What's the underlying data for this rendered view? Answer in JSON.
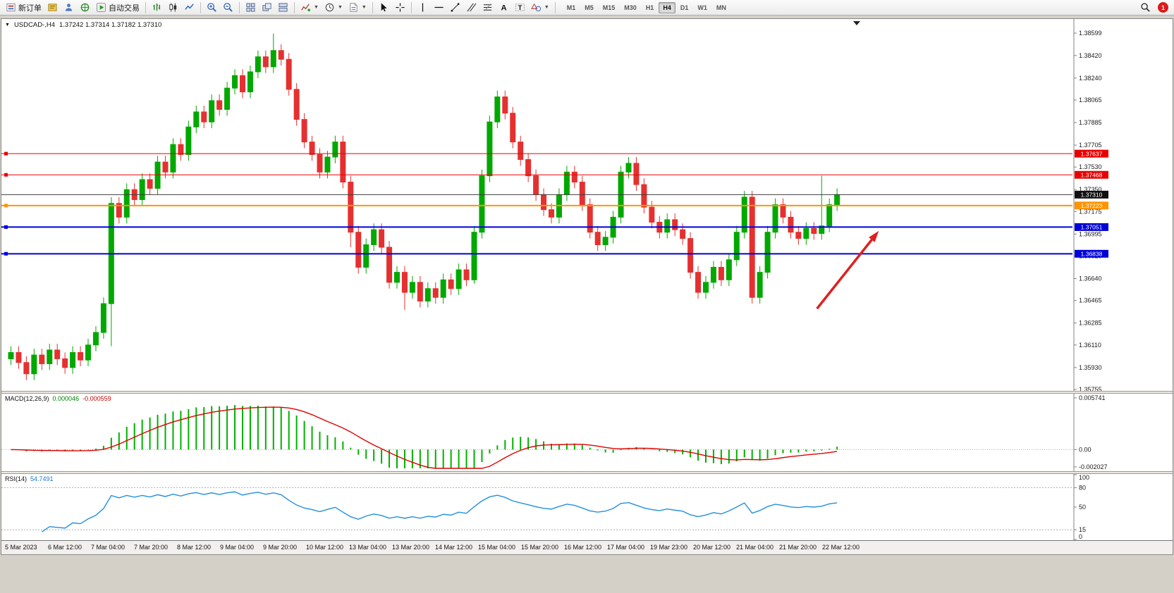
{
  "toolbar": {
    "new_order_label": "新订单",
    "autotrading_label": "自动交易",
    "timeframes": [
      "M1",
      "M5",
      "M15",
      "M30",
      "H1",
      "H4",
      "D1",
      "W1",
      "MN"
    ],
    "active_timeframe": "H4",
    "notification_count": "1",
    "icons": [
      "new-order",
      "terminal",
      "strategy-tester",
      "metaeditor",
      "autotrading-play",
      "ohlc-bars",
      "candlesticks",
      "line-chart",
      "zoom-in",
      "zoom-out",
      "tile-windows",
      "cascade-windows",
      "tile-horizontal",
      "indicators-add",
      "periods-clock",
      "templates",
      "cursor",
      "crosshair",
      "vertical-line",
      "horizontal-line",
      "trendline",
      "channel",
      "fibonacci",
      "text",
      "text-label",
      "shapes",
      "search",
      "notification"
    ]
  },
  "chart": {
    "title": "USDCAD-,H4",
    "ohlc": "1.37242 1.37314 1.37182 1.37310"
  },
  "chart_data": {
    "type": "candlestick",
    "symbol": "USDCAD-",
    "timeframe": "H4",
    "price_chart": {
      "first_open": 1.36,
      "closes": [
        1.3605,
        1.3597,
        1.3588,
        1.3603,
        1.3596,
        1.3607,
        1.36,
        1.3593,
        1.3605,
        1.3599,
        1.3611,
        1.3621,
        1.3644,
        1.3724,
        1.3713,
        1.3735,
        1.3727,
        1.3743,
        1.3736,
        1.3757,
        1.3749,
        1.3771,
        1.3763,
        1.3785,
        1.3797,
        1.3789,
        1.3806,
        1.3799,
        1.3816,
        1.3826,
        1.3813,
        1.3829,
        1.3841,
        1.3833,
        1.3846,
        1.3839,
        1.3815,
        1.3791,
        1.3773,
        1.3763,
        1.3749,
        1.3761,
        1.3773,
        1.3741,
        1.3701,
        1.3673,
        1.3691,
        1.3703,
        1.3689,
        1.3661,
        1.3669,
        1.3653,
        1.3661,
        1.3646,
        1.3656,
        1.3649,
        1.3663,
        1.3656,
        1.3671,
        1.3663,
        1.3701,
        1.3746,
        1.3789,
        1.3809,
        1.3796,
        1.3773,
        1.3759,
        1.3746,
        1.3731,
        1.3719,
        1.3713,
        1.3731,
        1.3749,
        1.3741,
        1.3723,
        1.3701,
        1.3691,
        1.3697,
        1.3713,
        1.3749,
        1.3756,
        1.3739,
        1.3721,
        1.3709,
        1.3701,
        1.3711,
        1.3703,
        1.3696,
        1.3669,
        1.3653,
        1.3661,
        1.3673,
        1.3663,
        1.3679,
        1.3701,
        1.3729,
        1.3649,
        1.3669,
        1.3701,
        1.3723,
        1.3713,
        1.3701,
        1.3696,
        1.3704,
        1.37,
        1.3706,
        1.3723,
        1.3731
      ],
      "wick_overrides": {
        "2": {
          "l": 1.3583
        },
        "13": {
          "l": 1.361
        },
        "34": {
          "h": 1.38595
        },
        "44": {
          "l": 1.3689
        },
        "51": {
          "l": 1.3639
        },
        "60": {
          "l": 1.366
        },
        "96": {
          "l": 1.3644
        },
        "105": {
          "h": 1.3746
        }
      },
      "y_axis_ticks": [
        "1.38599",
        "1.38420",
        "1.38240",
        "1.38065",
        "1.37885",
        "1.37705",
        "1.37530",
        "1.37350",
        "1.37175",
        "1.36995",
        "1.36820",
        "1.36640",
        "1.36465",
        "1.36285",
        "1.36110",
        "1.35930",
        "1.35755"
      ],
      "levels": [
        {
          "price": 1.37637,
          "label": "1.37637",
          "color": "#e80000",
          "badge": "#e80000",
          "width": 1
        },
        {
          "price": 1.37468,
          "label": "1.37468",
          "color": "#e80000",
          "badge": "#e80000",
          "width": 1
        },
        {
          "price": 1.3731,
          "label": "1.37310",
          "color": "#3c3c3c",
          "badge": "#101010",
          "width": 1,
          "is_price": true
        },
        {
          "price": 1.37223,
          "label": "1.37223",
          "color": "#ff9400",
          "badge": "#ff9400",
          "width": 2
        },
        {
          "price": 1.37051,
          "label": "1.37051",
          "color": "#0000d8",
          "badge": "#0000d8",
          "width": 2
        },
        {
          "price": 1.36838,
          "label": "1.36838",
          "color": "#0000d8",
          "badge": "#0000d8",
          "width": 2
        }
      ],
      "colors": {
        "up": "#00a800",
        "down": "#e53030",
        "axis_text": "#1a1a1a"
      }
    },
    "macd": {
      "label": "MACD(12,26,9)",
      "value_main": "0.000046",
      "value_signal": "-0.000559",
      "axis": [
        "0.005741",
        "0.00",
        "-0.002027"
      ],
      "max": 0.005741,
      "min": -0.002027,
      "histogram_color": "#00b000",
      "signal_color": "#e00000"
    },
    "rsi": {
      "label": "RSI(14)",
      "value": "54.7491",
      "axis": [
        "100",
        "80",
        "50",
        "15",
        "0"
      ],
      "levels": [
        80,
        15
      ],
      "line_color": "#2090e0"
    },
    "x_axis_labels": [
      "5 Mar 2023",
      "6 Mar 12:00",
      "7 Mar 04:00",
      "7 Mar 20:00",
      "8 Mar 12:00",
      "9 Mar 04:00",
      "9 Mar 20:00",
      "10 Mar 12:00",
      "13 Mar 04:00",
      "13 Mar 20:00",
      "14 Mar 12:00",
      "15 Mar 04:00",
      "15 Mar 20:00",
      "16 Mar 12:00",
      "17 Mar 04:00",
      "19 Mar 23:00",
      "20 Mar 12:00",
      "21 Mar 04:00",
      "21 Mar 20:00",
      "22 Mar 12:00"
    ],
    "annotation": {
      "type": "arrow",
      "color": "#e02020",
      "from": {
        "bar": 104.4,
        "price": 1.364
      },
      "to": {
        "bar": 112.4,
        "price": 1.3702
      }
    }
  }
}
